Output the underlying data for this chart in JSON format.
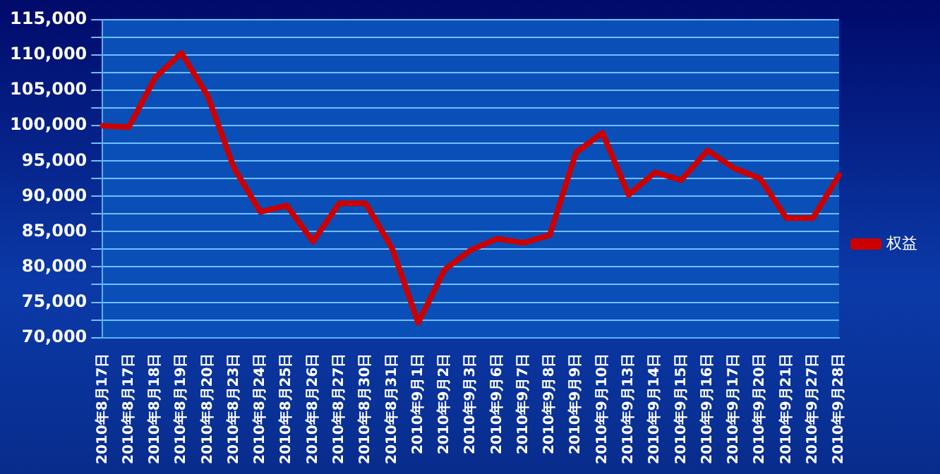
{
  "chart_data": {
    "type": "line",
    "categories": [
      "2010年8月17日",
      "2010年8月17日",
      "2010年8月18日",
      "2010年8月19日",
      "2010年8月20日",
      "2010年8月23日",
      "2010年8月24日",
      "2010年8月25日",
      "2010年8月26日",
      "2010年8月27日",
      "2010年8月30日",
      "2010年8月31日",
      "2010年9月1日",
      "2010年9月2日",
      "2010年9月3日",
      "2010年9月6日",
      "2010年9月7日",
      "2010年9月8日",
      "2010年9月9日",
      "2010年9月10日",
      "2010年9月13日",
      "2010年9月14日",
      "2010年9月15日",
      "2010年9月16日",
      "2010年9月17日",
      "2010年9月20日",
      "2010年9月21日",
      "2010年9月27日",
      "2010年9月28日"
    ],
    "series": [
      {
        "name": "权益",
        "color": "#cc0000",
        "values": [
          100000,
          99800,
          106800,
          110300,
          104200,
          94000,
          87800,
          88700,
          83600,
          89000,
          89000,
          82700,
          72100,
          79600,
          82400,
          84000,
          83400,
          84500,
          96200,
          99000,
          90200,
          93400,
          92300,
          96500,
          94000,
          92500,
          86900,
          86900,
          93000
        ]
      }
    ],
    "ylim": [
      70000,
      115000
    ],
    "yticks": [
      {
        "value": 70000,
        "label": "70,000"
      },
      {
        "value": 72500,
        "label": null
      },
      {
        "value": 75000,
        "label": "75,000"
      },
      {
        "value": 77500,
        "label": null
      },
      {
        "value": 80000,
        "label": "80,000"
      },
      {
        "value": 82500,
        "label": null
      },
      {
        "value": 85000,
        "label": "85,000"
      },
      {
        "value": 87500,
        "label": null
      },
      {
        "value": 90000,
        "label": "90,000"
      },
      {
        "value": 92500,
        "label": null
      },
      {
        "value": 95000,
        "label": "95,000"
      },
      {
        "value": 97500,
        "label": null
      },
      {
        "value": 100000,
        "label": "100,000"
      },
      {
        "value": 102500,
        "label": null
      },
      {
        "value": 105000,
        "label": "105,000"
      },
      {
        "value": 107500,
        "label": null
      },
      {
        "value": 110000,
        "label": "110,000"
      },
      {
        "value": 112500,
        "label": null
      },
      {
        "value": 115000,
        "label": "115,000"
      }
    ],
    "grid": "y",
    "legend": "right",
    "marker": "none",
    "line_style": "solid"
  }
}
